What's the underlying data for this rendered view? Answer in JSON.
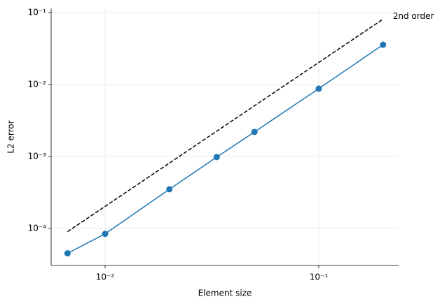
{
  "chart_data": {
    "type": "line",
    "log_x": true,
    "log_y": true,
    "grid": true,
    "xlabel": "Element size",
    "ylabel": "L2 error",
    "xlim": [
      0.00559,
      0.2366
    ],
    "ylim": [
      3.05e-05,
      0.1143
    ],
    "xticks": [
      {
        "value": 0.01,
        "label": "10⁻²"
      },
      {
        "value": 0.1,
        "label": "10⁻¹"
      }
    ],
    "yticks": [
      {
        "value": 0.0001,
        "label": "10⁻⁴"
      },
      {
        "value": 0.001,
        "label": "10⁻³"
      },
      {
        "value": 0.01,
        "label": "10⁻²"
      },
      {
        "value": 0.1,
        "label": "10⁻¹"
      }
    ],
    "series": [
      {
        "x": [
          0.00667,
          0.01,
          0.02,
          0.0333,
          0.05,
          0.1,
          0.2
        ],
        "values": [
          4.5e-05,
          8.4e-05,
          0.00035,
          0.00098,
          0.00219,
          0.00875,
          0.0357
        ],
        "color": "#1f77b4",
        "markers": true
      },
      {
        "name": "2nd order",
        "x": [
          0.00667,
          0.2
        ],
        "values": [
          9e-05,
          0.081
        ],
        "color": "#000000",
        "dashed": true
      }
    ]
  }
}
